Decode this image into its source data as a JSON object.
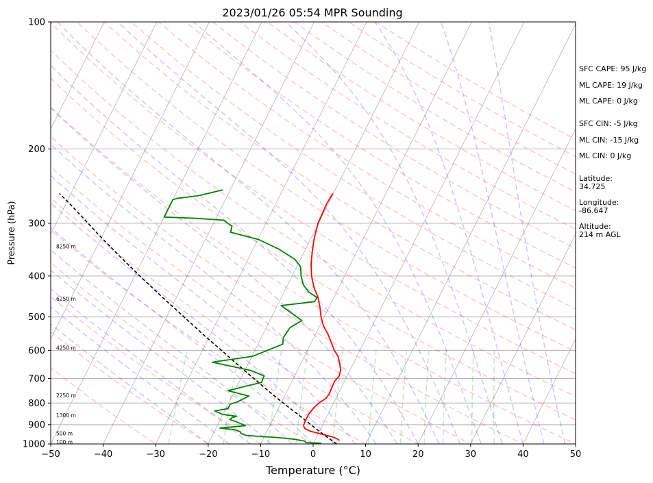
{
  "chart_data": {
    "type": "line",
    "title": "2023/01/26 05:54 MPR Sounding",
    "xlabel": "Temperature (°C)",
    "ylabel": "Pressure (hPa)",
    "xlim": [
      -50,
      50
    ],
    "ylim": [
      1000,
      100
    ],
    "y_scale": "log",
    "grid": true,
    "x_ticks": [
      -50,
      -40,
      -30,
      -20,
      -10,
      0,
      10,
      20,
      30,
      40,
      50
    ],
    "y_ticks": [
      1000,
      900,
      800,
      700,
      600,
      500,
      400,
      300,
      200,
      100
    ],
    "skew": true,
    "temperature": {
      "color": "#ff0000",
      "points": [
        [
          981,
          4.7
        ],
        [
          975,
          4.3
        ],
        [
          962,
          3.0
        ],
        [
          945,
          0.2
        ],
        [
          932,
          -1.8
        ],
        [
          920,
          -3.0
        ],
        [
          905,
          -3.6
        ],
        [
          880,
          -3.7
        ],
        [
          850,
          -3.7
        ],
        [
          820,
          -3.3
        ],
        [
          800,
          -2.8
        ],
        [
          780,
          -1.9
        ],
        [
          760,
          -1.7
        ],
        [
          735,
          -1.8
        ],
        [
          710,
          -1.9
        ],
        [
          690,
          -1.5
        ],
        [
          668,
          -1.8
        ],
        [
          645,
          -2.6
        ],
        [
          620,
          -3.6
        ],
        [
          600,
          -4.9
        ],
        [
          575,
          -6.2
        ],
        [
          550,
          -7.6
        ],
        [
          525,
          -9.3
        ],
        [
          500,
          -10.6
        ],
        [
          475,
          -11.7
        ],
        [
          450,
          -13.0
        ],
        [
          425,
          -14.8
        ],
        [
          400,
          -16.3
        ],
        [
          375,
          -17.5
        ],
        [
          350,
          -18.5
        ],
        [
          325,
          -19.4
        ],
        [
          300,
          -20.1
        ],
        [
          285,
          -20.2
        ],
        [
          270,
          -20.3
        ],
        [
          255,
          -20.1
        ]
      ]
    },
    "dewpoint": {
      "color": "#008000",
      "points": [
        [
          996,
          1.5
        ],
        [
          993,
          -1.5
        ],
        [
          985,
          -1.8
        ],
        [
          975,
          -3.9
        ],
        [
          965,
          -7.6
        ],
        [
          955,
          -13.5
        ],
        [
          945,
          -14.7
        ],
        [
          935,
          -15.1
        ],
        [
          925,
          -16.4
        ],
        [
          917,
          -19.3
        ],
        [
          905,
          -14.6
        ],
        [
          885,
          -16.9
        ],
        [
          875,
          -18.2
        ],
        [
          865,
          -17.9
        ],
        [
          860,
          -17.2
        ],
        [
          851,
          -20.1
        ],
        [
          835,
          -21.9
        ],
        [
          825,
          -19.6
        ],
        [
          805,
          -19.6
        ],
        [
          795,
          -18.4
        ],
        [
          785,
          -17.8
        ],
        [
          770,
          -16.8
        ],
        [
          748,
          -21.3
        ],
        [
          730,
          -18.4
        ],
        [
          715,
          -15.7
        ],
        [
          700,
          -15.8
        ],
        [
          690,
          -15.8
        ],
        [
          670,
          -18.8
        ],
        [
          640,
          -27.0
        ],
        [
          620,
          -19.9
        ],
        [
          580,
          -15.3
        ],
        [
          560,
          -15.8
        ],
        [
          530,
          -15.5
        ],
        [
          510,
          -13.9
        ],
        [
          470,
          -19.3
        ],
        [
          460,
          -13.3
        ],
        [
          450,
          -13.2
        ],
        [
          436,
          -15.4
        ],
        [
          420,
          -17.0
        ],
        [
          400,
          -18.3
        ],
        [
          380,
          -19.3
        ],
        [
          365,
          -21.1
        ],
        [
          345,
          -25.2
        ],
        [
          328,
          -29.8
        ],
        [
          315,
          -35.9
        ],
        [
          305,
          -36.2
        ],
        [
          295,
          -38.4
        ],
        [
          292,
          -43.7
        ],
        [
          290,
          -50.0
        ],
        [
          264,
          -50.0
        ],
        [
          262,
          -49.4
        ],
        [
          258,
          -45.5
        ],
        [
          250,
          -41.4
        ]
      ]
    },
    "parcel_profile": {
      "color": "#000000",
      "style": "dashed",
      "points": [
        [
          1000,
          4.5
        ],
        [
          950,
          1.1
        ],
        [
          900,
          -2.3
        ],
        [
          850,
          -5.8
        ],
        [
          800,
          -9.6
        ],
        [
          750,
          -13.5
        ],
        [
          700,
          -17.5
        ],
        [
          650,
          -21.8
        ],
        [
          600,
          -26.4
        ],
        [
          550,
          -31.4
        ],
        [
          500,
          -36.7
        ],
        [
          450,
          -42.6
        ],
        [
          400,
          -49.0
        ],
        [
          360,
          -54.6
        ],
        [
          320,
          -60.7
        ],
        [
          290,
          -65.6
        ],
        [
          270,
          -69.2
        ],
        [
          255,
          -72.2
        ]
      ]
    },
    "height_labels": [
      {
        "label": "100 m",
        "pressure": 1000
      },
      {
        "label": "500 m",
        "pressure": 955
      },
      {
        "label": "1300 m",
        "pressure": 865
      },
      {
        "label": "2250 m",
        "pressure": 775
      },
      {
        "label": "4250 m",
        "pressure": 598
      },
      {
        "label": "6250 m",
        "pressure": 458
      },
      {
        "label": "8250 m",
        "pressure": 344
      }
    ],
    "background_lines": {
      "isotherms": "#808080",
      "dry_adiabats": "#ff0000",
      "moist_adiabats": "#0000ff",
      "mixing_ratio": "#008000"
    }
  },
  "stats": {
    "sfc_cape": "SFC CAPE: 95 J/kg",
    "ml_cape_1": "ML CAPE: 19 J/kg",
    "ml_cape_2": "ML CAPE: 0 J/kg",
    "sfc_cin": "SFC CIN: -5 J/kg",
    "ml_cin_1": "ML CIN: -15 J/kg",
    "ml_cin_2": "ML CIN: 0 J/kg",
    "latitude_label": "Latitude:",
    "latitude_value": "34.725",
    "longitude_label": "Longitude:",
    "longitude_value": "-86.647",
    "altitude_label": "Altitude:",
    "altitude_value": "214 m AGL"
  }
}
